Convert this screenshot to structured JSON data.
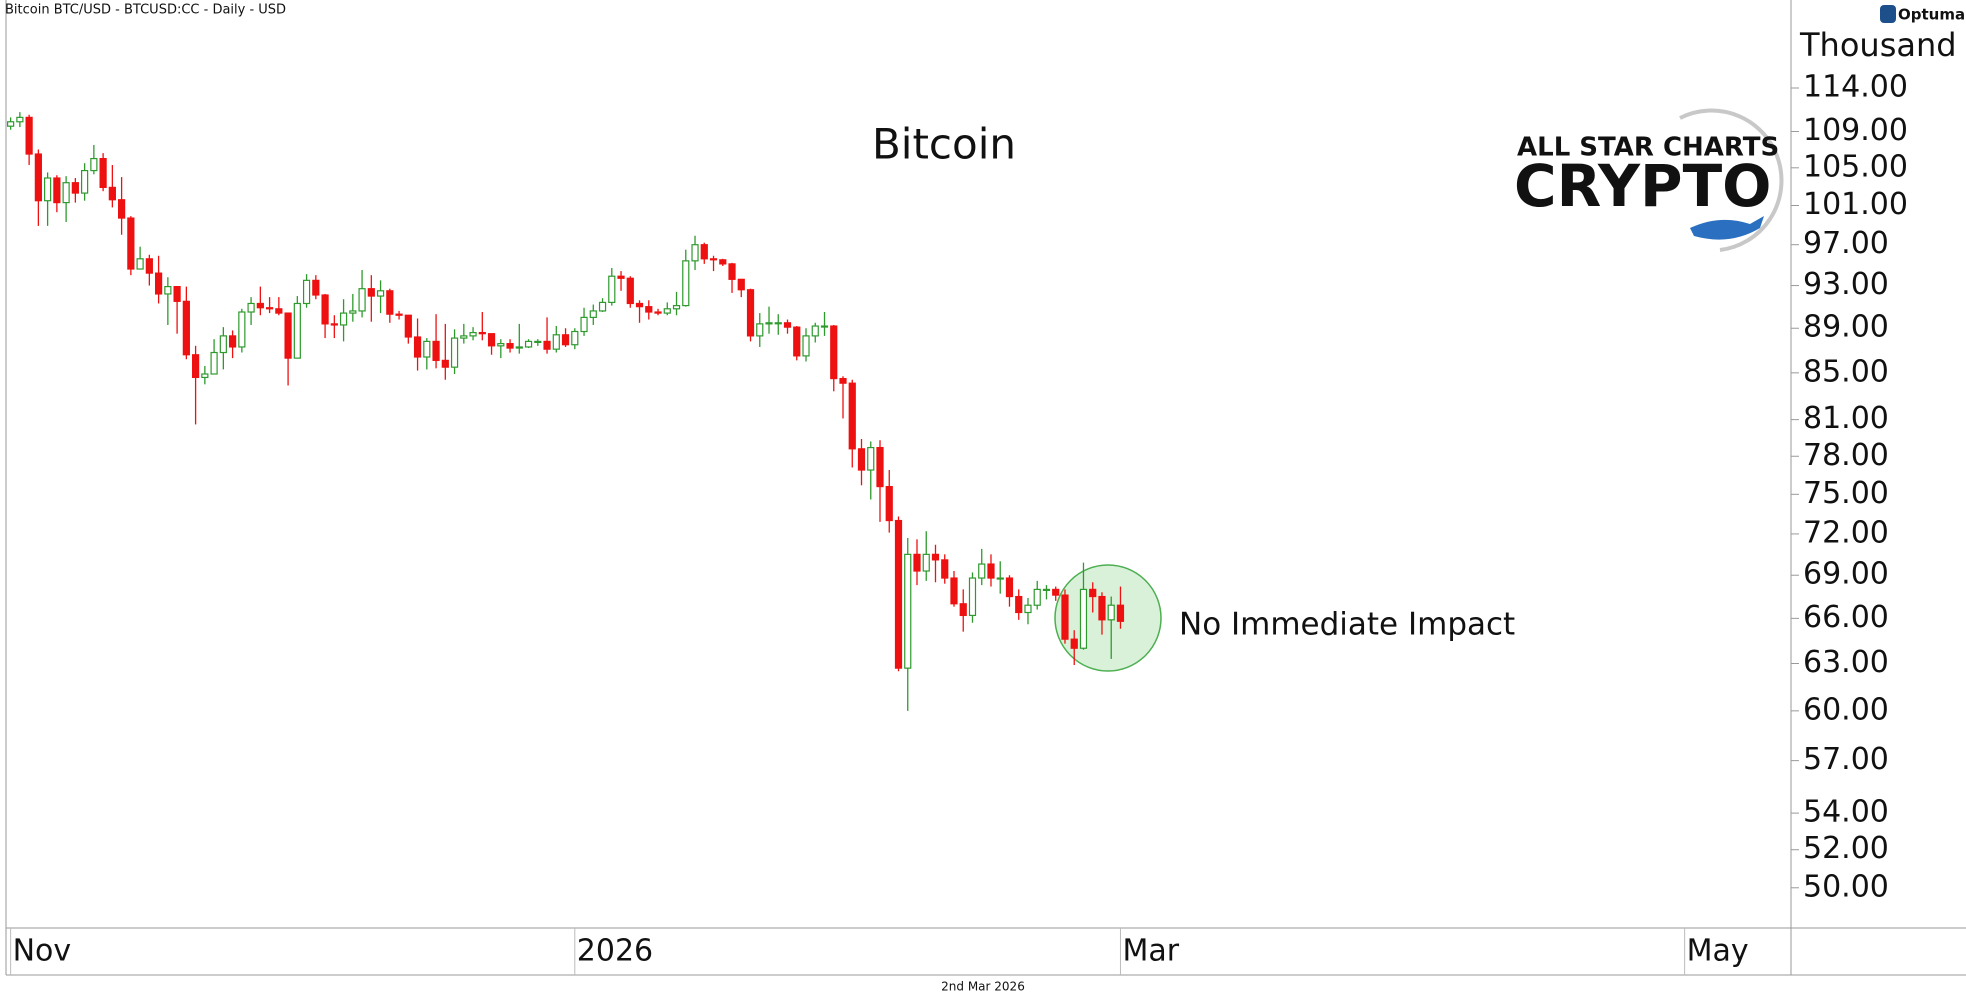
{
  "chart_data": {
    "type": "candlestick",
    "header": "Bitcoin BTC/USD - BTCUSD:CC - Daily - USD",
    "title": "Bitcoin",
    "footer": "2nd Mar 2026",
    "y_unit": "Thousand",
    "annotation": "No Immediate Impact",
    "annotation_color": "#1a8a1a",
    "brand": "ALL STAR CHARTS",
    "product": "CRYPTO",
    "vendor": "Optuma",
    "log_scale": true,
    "up_color": "#2e9a2e",
    "down_color": "#ee1111",
    "xlim": [
      -0.5,
      192.5
    ],
    "xticks": [
      {
        "value": 0,
        "label": "Nov"
      },
      {
        "value": 61,
        "label": "2026"
      },
      {
        "value": 120,
        "label": "Mar"
      },
      {
        "value": 181,
        "label": "May"
      }
    ],
    "ylim": [
      47.97,
      122.4
    ],
    "yticks": [
      {
        "value": 114,
        "label": "114.00"
      },
      {
        "value": 109,
        "label": "109.00"
      },
      {
        "value": 105,
        "label": "105.00"
      },
      {
        "value": 101,
        "label": "101.00"
      },
      {
        "value": 97,
        "label": "97.00"
      },
      {
        "value": 93,
        "label": "93.00"
      },
      {
        "value": 89,
        "label": "89.00"
      },
      {
        "value": 85,
        "label": "85.00"
      },
      {
        "value": 81,
        "label": "81.00"
      },
      {
        "value": 78,
        "label": "78.00"
      },
      {
        "value": 75,
        "label": "75.00"
      },
      {
        "value": 72,
        "label": "72.00"
      },
      {
        "value": 69,
        "label": "69.00"
      },
      {
        "value": 66,
        "label": "66.00"
      },
      {
        "value": 63,
        "label": "63.00"
      },
      {
        "value": 60,
        "label": "60.00"
      },
      {
        "value": 57,
        "label": "57.00"
      },
      {
        "value": 54,
        "label": "54.00"
      },
      {
        "value": 52,
        "label": "52.00"
      },
      {
        "value": 50,
        "label": "50.00"
      }
    ],
    "x": [
      0,
      1,
      2,
      3,
      4,
      5,
      6,
      7,
      8,
      9,
      10,
      11,
      12,
      13,
      14,
      15,
      16,
      17,
      18,
      19,
      20,
      21,
      22,
      23,
      24,
      25,
      26,
      27,
      28,
      29,
      30,
      31,
      32,
      33,
      34,
      35,
      36,
      37,
      38,
      39,
      40,
      41,
      42,
      43,
      44,
      45,
      46,
      47,
      48,
      49,
      50,
      51,
      52,
      53,
      54,
      55,
      56,
      57,
      58,
      59,
      60,
      61,
      62,
      63,
      64,
      65,
      66,
      67,
      68,
      69,
      70,
      71,
      72,
      73,
      74,
      75,
      76,
      77,
      78,
      79,
      80,
      81,
      82,
      83,
      84,
      85,
      86,
      87,
      88,
      89,
      90,
      91,
      92,
      93,
      94,
      95,
      96,
      97,
      98,
      99,
      100,
      101,
      102,
      103,
      104,
      105,
      106,
      107,
      108,
      109,
      110,
      111,
      112,
      113,
      114,
      115,
      116,
      117,
      118,
      119,
      120
    ],
    "open": [
      109.6,
      110.1,
      110.6,
      106.5,
      101.5,
      103.9,
      101.3,
      103.4,
      102.3,
      104.7,
      106.0,
      102.9,
      101.6,
      99.7,
      94.6,
      95.6,
      94.2,
      92.2,
      92.9,
      91.5,
      86.6,
      84.6,
      84.9,
      86.8,
      88.3,
      87.3,
      90.5,
      91.3,
      90.9,
      90.8,
      90.4,
      86.3,
      91.3,
      93.5,
      92.1,
      89.4,
      89.3,
      90.4,
      90.6,
      92.7,
      92.0,
      92.5,
      90.3,
      90.2,
      88.2,
      86.4,
      87.8,
      86.1,
      85.5,
      88.1,
      88.3,
      88.6,
      88.5,
      87.4,
      87.6,
      87.2,
      87.3,
      87.8,
      87.8,
      87.1,
      88.4,
      87.5,
      88.7,
      90.0,
      90.6,
      91.4,
      93.9,
      93.7,
      91.3,
      91.0,
      90.5,
      90.4,
      90.8,
      91.1,
      95.4,
      97.0,
      95.6,
      95.5,
      95.1,
      93.6,
      92.6,
      88.3,
      89.4,
      89.5,
      89.5,
      89.1,
      86.5,
      88.3,
      89.2,
      89.2,
      84.5,
      84.1,
      78.6,
      76.9,
      78.7,
      75.6,
      73.0,
      62.7,
      70.5,
      69.3,
      70.5,
      70.1,
      68.8,
      67.0,
      66.2,
      68.8,
      69.8,
      68.8,
      68.8,
      67.5,
      66.4,
      66.9,
      68.0,
      68.0,
      67.6,
      64.6,
      64.0,
      68.0,
      67.5,
      65.9,
      66.9
    ],
    "high": [
      110.6,
      111.2,
      110.9,
      107.0,
      104.5,
      104.2,
      104.1,
      103.9,
      105.5,
      107.5,
      106.6,
      105.3,
      104.0,
      99.9,
      96.8,
      96.0,
      95.9,
      93.8,
      92.8,
      92.9,
      87.4,
      85.6,
      88.0,
      89.1,
      88.8,
      90.8,
      91.9,
      92.9,
      91.9,
      91.9,
      90.4,
      92.0,
      94.1,
      94.0,
      92.2,
      90.2,
      91.7,
      92.2,
      94.5,
      94.0,
      93.5,
      92.7,
      90.6,
      90.2,
      89.9,
      88.1,
      90.3,
      89.4,
      88.9,
      89.4,
      89.1,
      90.5,
      88.2,
      88.0,
      88.0,
      89.4,
      88.0,
      88.0,
      90.0,
      89.2,
      89.0,
      89.0,
      90.9,
      91.2,
      91.8,
      94.7,
      94.4,
      93.9,
      91.6,
      91.6,
      90.8,
      91.4,
      92.4,
      96.5,
      97.9,
      97.2,
      95.9,
      95.6,
      95.2,
      93.6,
      92.7,
      90.4,
      91.0,
      90.3,
      89.8,
      89.2,
      89.0,
      89.5,
      90.5,
      89.3,
      84.7,
      84.4,
      79.4,
      79.2,
      79.3,
      76.9,
      73.3,
      71.7,
      71.6,
      72.2,
      71.2,
      70.5,
      69.3,
      68.0,
      69.2,
      70.9,
      70.5,
      70.0,
      69.0,
      68.0,
      67.4,
      68.6,
      68.3,
      68.2,
      68.0,
      65.2,
      69.9,
      68.5,
      67.8,
      67.5,
      68.2
    ],
    "low": [
      109.2,
      109.5,
      105.3,
      98.9,
      98.9,
      100.3,
      99.3,
      101.3,
      101.5,
      104.3,
      102.5,
      100.8,
      98.0,
      94.0,
      94.6,
      93.0,
      91.3,
      89.3,
      88.5,
      86.2,
      80.6,
      84.0,
      85.3,
      85.3,
      86.3,
      86.8,
      89.3,
      90.2,
      90.4,
      90.2,
      83.9,
      86.3,
      90.9,
      91.7,
      88.1,
      88.1,
      87.8,
      89.6,
      90.0,
      89.6,
      90.4,
      89.5,
      89.8,
      87.6,
      85.2,
      85.3,
      85.4,
      84.4,
      84.9,
      87.6,
      87.9,
      87.9,
      86.6,
      86.3,
      86.8,
      86.7,
      87.2,
      87.4,
      86.7,
      86.8,
      87.3,
      87.1,
      88.3,
      89.3,
      90.5,
      91.1,
      92.5,
      90.9,
      89.5,
      89.8,
      90.2,
      90.2,
      90.2,
      91.0,
      94.5,
      95.1,
      94.4,
      94.9,
      92.3,
      91.9,
      87.8,
      87.3,
      88.5,
      88.4,
      88.5,
      86.1,
      86.0,
      87.7,
      88.3,
      83.4,
      81.1,
      77.1,
      75.7,
      74.6,
      72.9,
      72.1,
      62.5,
      60.0,
      68.3,
      68.6,
      68.5,
      68.4,
      66.8,
      65.1,
      65.7,
      68.3,
      68.2,
      67.7,
      66.8,
      65.9,
      65.6,
      66.6,
      67.3,
      67.2,
      64.3,
      62.9,
      63.9,
      66.4,
      64.9,
      63.3,
      65.3
    ],
    "close": [
      110.1,
      110.6,
      106.5,
      101.5,
      103.9,
      101.3,
      103.4,
      102.3,
      104.7,
      106.0,
      102.9,
      101.6,
      99.7,
      94.6,
      95.6,
      94.2,
      92.2,
      92.9,
      91.5,
      86.6,
      84.6,
      84.9,
      86.8,
      88.3,
      87.3,
      90.5,
      91.3,
      90.9,
      90.8,
      90.4,
      86.3,
      91.3,
      93.5,
      92.1,
      89.4,
      89.3,
      90.4,
      90.6,
      92.7,
      92.0,
      92.5,
      90.3,
      90.2,
      88.2,
      86.4,
      87.8,
      86.1,
      85.5,
      88.1,
      88.3,
      88.6,
      88.5,
      87.4,
      87.6,
      87.2,
      87.3,
      87.8,
      87.8,
      87.1,
      88.4,
      87.5,
      88.7,
      90.0,
      90.6,
      91.4,
      93.9,
      93.7,
      91.3,
      91.0,
      90.5,
      90.4,
      90.8,
      91.1,
      95.4,
      97.0,
      95.6,
      95.5,
      95.1,
      93.6,
      92.6,
      88.3,
      89.4,
      89.5,
      89.5,
      89.1,
      86.5,
      88.3,
      89.2,
      89.2,
      84.5,
      84.1,
      78.6,
      76.9,
      78.7,
      75.6,
      73.0,
      62.7,
      70.5,
      69.3,
      70.5,
      70.1,
      68.8,
      67.0,
      66.2,
      68.8,
      69.8,
      68.8,
      68.8,
      67.5,
      66.4,
      66.9,
      68.0,
      68.0,
      67.6,
      64.6,
      64.0,
      68.0,
      67.5,
      65.9,
      66.9,
      65.8
    ]
  }
}
